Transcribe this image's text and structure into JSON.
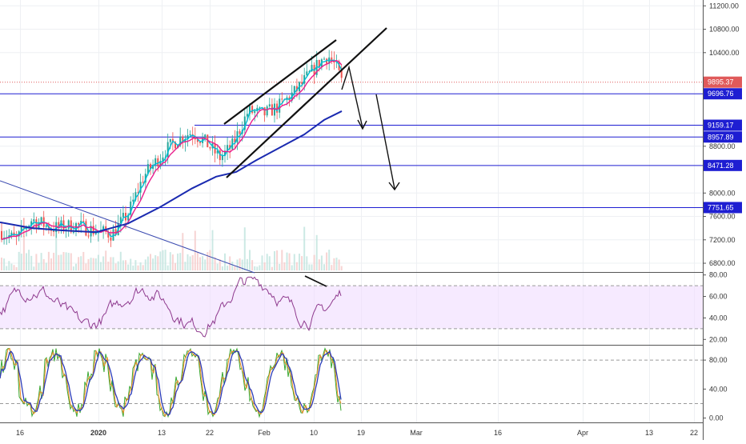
{
  "chart_data": {
    "type": "line",
    "title": "",
    "time_axis": {
      "tick_labels": [
        "16",
        "2020",
        "13",
        "22",
        "Feb",
        "10",
        "19",
        "Mar",
        "16",
        "Apr",
        "13",
        "22"
      ]
    },
    "price_pane": {
      "ylim": [
        6650,
        11300
      ],
      "tick_labels": [
        "6800.00",
        "7200.00",
        "7600.00",
        "8000.00",
        "8800.00",
        "10400.00",
        "10800.00",
        "11200.00"
      ],
      "last_price": {
        "label": "9895.37",
        "value": 9895.37,
        "color": "#e05a5a"
      },
      "horizontal_levels": [
        {
          "label": "9696.76",
          "value": 9696.76
        },
        {
          "label": "9159.17",
          "value": 9159.17
        },
        {
          "label": "8957.89",
          "value": 8957.89
        },
        {
          "label": "8471.28",
          "value": 8471.28
        },
        {
          "label": "7751.65",
          "value": 7751.65
        }
      ],
      "level_color": "#1e1ed2",
      "series": [
        {
          "role": "candles",
          "up_color": "#26a69a",
          "down_color": "#ef5350"
        },
        {
          "role": "fast-ma",
          "color": "#00bcd4"
        },
        {
          "role": "medium-ma",
          "color": "#e91e8c"
        },
        {
          "role": "slow-ma",
          "color": "#1a2ab0"
        }
      ]
    },
    "rsi_pane": {
      "ylim": [
        15,
        82
      ],
      "tick_labels": [
        "80.00",
        "60.00",
        "40.00",
        "20.00"
      ],
      "band": [
        30,
        70
      ],
      "line_color": "#8e3a8e",
      "band_color": "#f0dcff"
    },
    "stoch_pane": {
      "ylim": [
        -6,
        100
      ],
      "tick_labels": [
        "80.00",
        "40.00",
        "0.00"
      ],
      "guide_levels": [
        80,
        20
      ],
      "series": [
        {
          "role": "fast-k",
          "color": "#3aa832"
        },
        {
          "role": "slow-k",
          "color": "#f08a24"
        },
        {
          "role": "slow-d",
          "color": "#2b3bb8"
        }
      ]
    }
  }
}
